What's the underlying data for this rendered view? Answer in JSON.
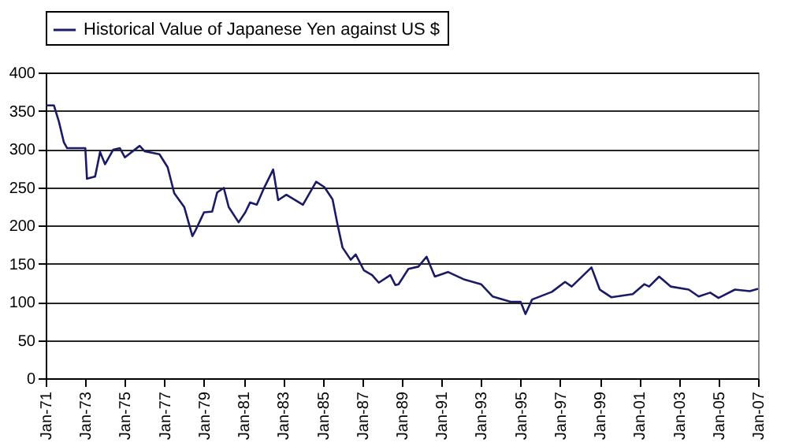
{
  "chart_data": {
    "type": "line",
    "x": [
      "1971-01",
      "1971-06",
      "1971-09",
      "1971-12",
      "1972-02",
      "1972-11",
      "1973-01",
      "1973-02",
      "1973-07",
      "1973-10",
      "1974-01",
      "1974-06",
      "1974-10",
      "1975-01",
      "1975-10",
      "1976-01",
      "1976-10",
      "1977-03",
      "1977-07",
      "1978-01",
      "1978-06",
      "1978-08",
      "1979-01",
      "1979-06",
      "1979-09",
      "1980-01",
      "1980-04",
      "1980-10",
      "1981-02",
      "1981-05",
      "1981-09",
      "1982-01",
      "1982-07",
      "1982-10",
      "1983-03",
      "1984-01",
      "1984-09",
      "1985-02",
      "1985-07",
      "1985-10",
      "1986-01",
      "1986-06",
      "1986-09",
      "1987-02",
      "1987-07",
      "1987-11",
      "1988-06",
      "1988-09",
      "1988-11",
      "1989-05",
      "1989-11",
      "1990-04",
      "1990-09",
      "1991-05",
      "1992-03",
      "1993-01",
      "1993-08",
      "1994-07",
      "1995-01",
      "1995-04",
      "1995-08",
      "1996-08",
      "1997-04",
      "1997-08",
      "1998-08",
      "1999-01",
      "1999-08",
      "2000-09",
      "2001-04",
      "2001-07",
      "2002-01",
      "2002-08",
      "2003-07",
      "2004-01",
      "2004-08",
      "2005-01",
      "2005-11",
      "2006-08",
      "2007-01"
    ],
    "series": [
      {
        "name": "Historical Value of Japanese Yen against US $",
        "color": "#1a1a66",
        "values": [
          357,
          357,
          336,
          309,
          301,
          301,
          301,
          261,
          264,
          296,
          280,
          299,
          301,
          289,
          304,
          297,
          293,
          276,
          242,
          224,
          186,
          194,
          217,
          218,
          243,
          249,
          224,
          204,
          217,
          230,
          227,
          247,
          273,
          233,
          240,
          227,
          257,
          250,
          234,
          201,
          171,
          155,
          162,
          141,
          135,
          125,
          135,
          122,
          123,
          143,
          146,
          159,
          133,
          139,
          129,
          123,
          107,
          100,
          100,
          84,
          103,
          113,
          126,
          120,
          145,
          116,
          106,
          110,
          123,
          120,
          133,
          120,
          116,
          107,
          112,
          105,
          116,
          114,
          117
        ]
      }
    ],
    "xlim": [
      "1971-01",
      "2007-01"
    ],
    "xticks": [
      {
        "value": "1971-01",
        "label": "Jan-71"
      },
      {
        "value": "1973-01",
        "label": "Jan-73"
      },
      {
        "value": "1975-01",
        "label": "Jan-75"
      },
      {
        "value": "1977-01",
        "label": "Jan-77"
      },
      {
        "value": "1979-01",
        "label": "Jan-79"
      },
      {
        "value": "1981-01",
        "label": "Jan-81"
      },
      {
        "value": "1983-01",
        "label": "Jan-83"
      },
      {
        "value": "1985-01",
        "label": "Jan-85"
      },
      {
        "value": "1987-01",
        "label": "Jan-87"
      },
      {
        "value": "1989-01",
        "label": "Jan-89"
      },
      {
        "value": "1991-01",
        "label": "Jan-91"
      },
      {
        "value": "1993-01",
        "label": "Jan-93"
      },
      {
        "value": "1995-01",
        "label": "Jan-95"
      },
      {
        "value": "1997-01",
        "label": "Jan-97"
      },
      {
        "value": "1999-01",
        "label": "Jan-99"
      },
      {
        "value": "2001-01",
        "label": "Jan-01"
      },
      {
        "value": "2003-01",
        "label": "Jan-03"
      },
      {
        "value": "2005-01",
        "label": "Jan-05"
      },
      {
        "value": "2007-01",
        "label": "Jan-07"
      }
    ],
    "ylim": [
      0,
      400
    ],
    "yticks": [
      0,
      50,
      100,
      150,
      200,
      250,
      300,
      350,
      400
    ],
    "grid": "y",
    "legend": "top",
    "line_style": "solid",
    "marker": "none"
  }
}
